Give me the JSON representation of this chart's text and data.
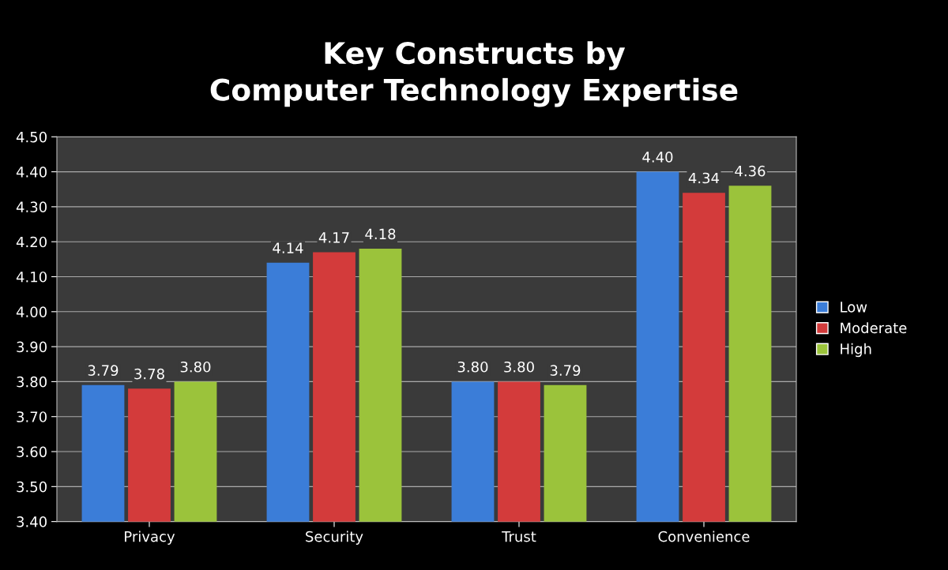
{
  "chart_data": {
    "type": "bar",
    "title": "Key Constructs by\nComputer Technology Expertise",
    "categories": [
      "Privacy",
      "Security",
      "Trust",
      "Convenience"
    ],
    "series": [
      {
        "name": "Low",
        "color": "#3b7dd8",
        "values": [
          3.79,
          4.14,
          3.8,
          4.4
        ],
        "value_labels": [
          "3.79",
          "4.14",
          "3.80",
          "4.40"
        ]
      },
      {
        "name": "Moderate",
        "color": "#d33b3b",
        "values": [
          3.78,
          4.17,
          3.8,
          4.34
        ],
        "value_labels": [
          "3.78",
          "4.17",
          "3.80",
          "4.34"
        ]
      },
      {
        "name": "High",
        "color": "#9bc33b",
        "values": [
          3.8,
          4.18,
          3.79,
          4.36
        ],
        "value_labels": [
          "3.80",
          "4.18",
          "3.79",
          "4.36"
        ]
      }
    ],
    "ylim": [
      3.4,
      4.5
    ],
    "yticks": [
      {
        "value": 3.4,
        "label": "3.40"
      },
      {
        "value": 3.5,
        "label": "3.50"
      },
      {
        "value": 3.6,
        "label": "3.60"
      },
      {
        "value": 3.7,
        "label": "3.70"
      },
      {
        "value": 3.8,
        "label": "3.80"
      },
      {
        "value": 3.9,
        "label": "3.90"
      },
      {
        "value": 4.0,
        "label": "4.00"
      },
      {
        "value": 4.1,
        "label": "4.10"
      },
      {
        "value": 4.2,
        "label": "4.20"
      },
      {
        "value": 4.3,
        "label": "4.30"
      },
      {
        "value": 4.4,
        "label": "4.40"
      },
      {
        "value": 4.5,
        "label": "4.50"
      }
    ],
    "grid": "y",
    "legend": "right"
  }
}
